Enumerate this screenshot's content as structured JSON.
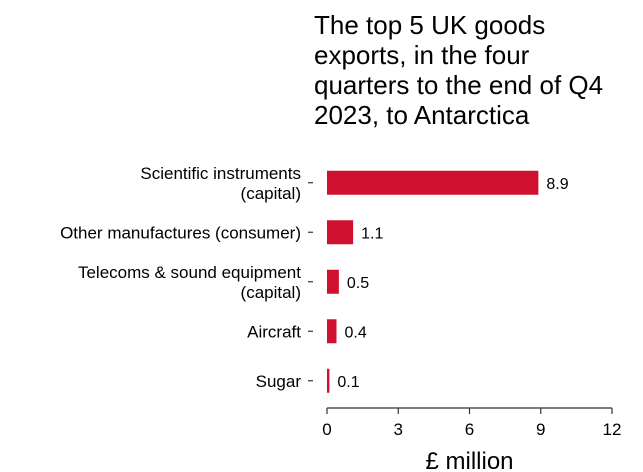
{
  "chart_data": {
    "type": "bar",
    "orientation": "horizontal",
    "title": "The top 5 UK goods\nexports, in the four\nquarters to the end of Q4\n2023, to Antarctica",
    "categories": [
      [
        "Scientific instruments",
        "(capital)"
      ],
      [
        "Other manufactures (consumer)"
      ],
      [
        "Telecoms & sound equipment",
        "(capital)"
      ],
      [
        "Aircraft"
      ],
      [
        "Sugar"
      ]
    ],
    "values": [
      8.9,
      1.1,
      0.5,
      0.4,
      0.1
    ],
    "value_labels": [
      "8.9",
      "1.1",
      "0.5",
      "0.4",
      "0.1"
    ],
    "xlabel": "£ million",
    "ylabel": "",
    "xlim": [
      0,
      12
    ],
    "xticks": [
      0,
      3,
      6,
      9,
      12
    ],
    "grid": false,
    "bar_color": "#d0102f"
  }
}
